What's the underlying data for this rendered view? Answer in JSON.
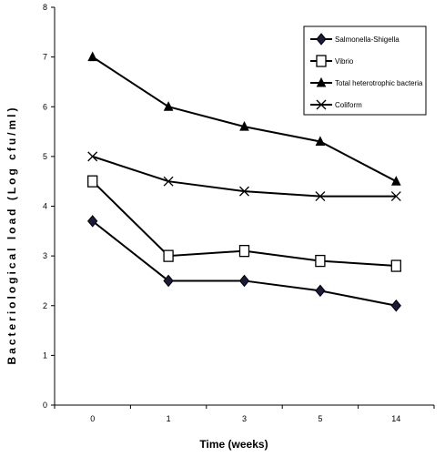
{
  "chart_data": {
    "type": "line",
    "title": "",
    "xlabel": "Time (weeks)",
    "ylabel": "Bacteriological load (Log cfu/ml)",
    "categories": [
      "0",
      "1",
      "3",
      "5",
      "14"
    ],
    "ylim": [
      0,
      8
    ],
    "yticks": [
      "0",
      "1",
      "2",
      "3",
      "4",
      "5",
      "6",
      "7",
      "8"
    ],
    "grid": false,
    "legend_position": "top-right",
    "series": [
      {
        "name": "Salmonella-Shigella",
        "marker": "diamond",
        "color": "#000000",
        "values": [
          3.7,
          2.5,
          2.5,
          2.3,
          2.0
        ]
      },
      {
        "name": "Vibrio",
        "marker": "square-open",
        "color": "#000000",
        "values": [
          4.5,
          3.0,
          3.1,
          2.9,
          2.8
        ]
      },
      {
        "name": "Total heterotrophic bacteria",
        "marker": "triangle",
        "color": "#000000",
        "values": [
          7.0,
          6.0,
          5.6,
          5.3,
          4.5
        ]
      },
      {
        "name": "Coliform",
        "marker": "cross",
        "color": "#000000",
        "values": [
          5.0,
          4.5,
          4.3,
          4.2,
          4.2
        ]
      }
    ]
  }
}
